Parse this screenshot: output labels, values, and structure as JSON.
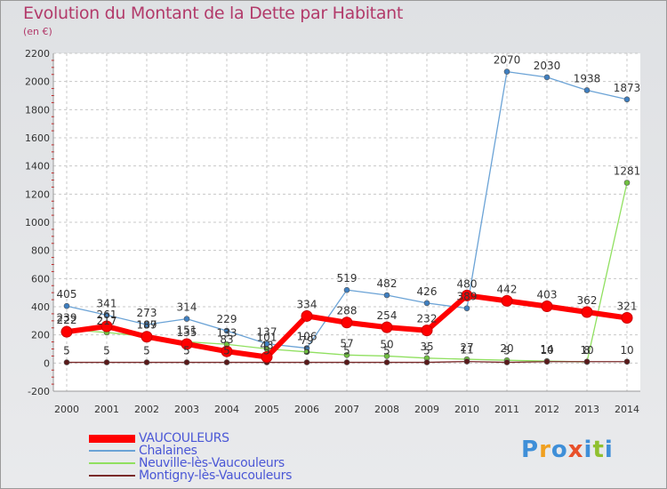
{
  "title": "Evolution du Montant de la Dette par Habitant",
  "subtitle": "(en €)",
  "logo": {
    "letters": [
      "P",
      "r",
      "o",
      "x",
      "i",
      "t",
      "i"
    ],
    "colors": [
      "#3f8fd8",
      "#f0a020",
      "#3f8fd8",
      "#e8502a",
      "#3f8fd8",
      "#90c030",
      "#3f8fd8"
    ]
  },
  "chart_data": {
    "type": "line",
    "x": [
      "2000",
      "2001",
      "2002",
      "2003",
      "2004",
      "2005",
      "2006",
      "2007",
      "2008",
      "2009",
      "2010",
      "2011",
      "2012",
      "2013",
      "2014"
    ],
    "ylim": [
      -200,
      2200
    ],
    "yticks": [
      "-200",
      "0",
      "200",
      "400",
      "600",
      "800",
      "1000",
      "1200",
      "1400",
      "1600",
      "1800",
      "2000",
      "2200"
    ],
    "grid": true,
    "legend_position": "bottom-left",
    "series": [
      {
        "name": "VAUCOULEURS",
        "color": "#ff0000",
        "values": [
          222,
          261,
          187,
          135,
          83,
          43,
          334,
          288,
          254,
          232,
          480,
          442,
          403,
          362,
          321
        ],
        "labels": [
          "222",
          "261",
          "187",
          "135",
          "83",
          "43",
          "334",
          "288",
          "254",
          "232",
          "480",
          "442",
          "403",
          "362",
          "321"
        ]
      },
      {
        "name": "Chalaines",
        "color": "#6ba3d6",
        "values": [
          405,
          341,
          273,
          314,
          229,
          137,
          106,
          519,
          482,
          426,
          389,
          2070,
          2030,
          1938,
          1873
        ],
        "labels": [
          "405",
          "341",
          "273",
          "314",
          "229",
          "137",
          "106",
          "519",
          "482",
          "426",
          "389",
          "2070",
          "2030",
          "1938",
          "1873"
        ]
      },
      {
        "name": "Neuville-lès-Vaucouleurs",
        "color": "#90e060",
        "values": [
          239,
          217,
          189,
          151,
          133,
          101,
          79,
          57,
          50,
          35,
          27,
          20,
          14,
          8,
          1281
        ],
        "labels": [
          "239",
          "217",
          "189",
          "151",
          "133",
          "101",
          "79",
          "57",
          "50",
          "35",
          "27",
          "20",
          "14",
          "8",
          "1281"
        ]
      },
      {
        "name": "Montigny-lès-Vaucouleurs",
        "color": "#7a2a2a",
        "values": [
          5,
          5,
          5,
          5,
          5,
          5,
          5,
          5,
          5,
          5,
          11,
          5,
          10,
          10,
          10
        ],
        "labels": [
          "5",
          "5",
          "5",
          "5",
          "5",
          "5",
          "5",
          "5",
          "5",
          "5",
          "11",
          "5",
          "10",
          "10",
          "10"
        ]
      }
    ]
  }
}
